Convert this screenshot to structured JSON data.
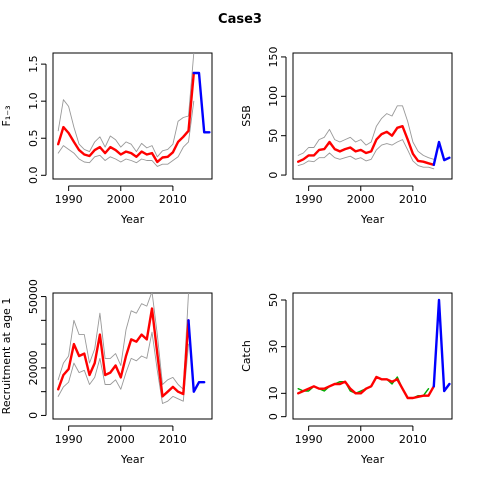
{
  "figure": {
    "title": "Case3"
  },
  "chart_data": [
    {
      "type": "line",
      "ylabel": "F₁₋₃",
      "xlabel": "Year",
      "xlim": [
        1987,
        2017.5
      ],
      "ylim": [
        -0.05,
        1.65
      ],
      "x_ticks": [
        1990,
        2000,
        2010
      ],
      "y_ticks": [
        0.0,
        0.5,
        1.0,
        1.5
      ],
      "y_tick_labels": [
        "0.0",
        "0.5",
        "1.0",
        "1.5"
      ],
      "series": [
        {
          "role": "estimate",
          "color": "#ff0000",
          "x": [
            1988,
            1989,
            1990,
            1991,
            1992,
            1993,
            1994,
            1995,
            1996,
            1997,
            1998,
            1999,
            2000,
            2001,
            2002,
            2003,
            2004,
            2005,
            2006,
            2007,
            2008,
            2009,
            2010,
            2011,
            2012,
            2013,
            2014
          ],
          "y": [
            0.42,
            0.65,
            0.57,
            0.45,
            0.34,
            0.28,
            0.26,
            0.34,
            0.38,
            0.3,
            0.38,
            0.34,
            0.28,
            0.32,
            0.3,
            0.25,
            0.32,
            0.28,
            0.3,
            0.18,
            0.24,
            0.25,
            0.31,
            0.45,
            0.52,
            0.6,
            1.38
          ]
        },
        {
          "role": "upper",
          "color": "#888888",
          "x": [
            1988,
            1989,
            1990,
            1991,
            1992,
            1993,
            1994,
            1995,
            1996,
            1997,
            1998,
            1999,
            2000,
            2001,
            2002,
            2003,
            2004,
            2005,
            2006,
            2007,
            2008,
            2009,
            2010,
            2011,
            2012,
            2013,
            2014
          ],
          "y": [
            0.6,
            1.02,
            0.93,
            0.65,
            0.42,
            0.35,
            0.32,
            0.45,
            0.52,
            0.38,
            0.53,
            0.48,
            0.38,
            0.45,
            0.42,
            0.32,
            0.43,
            0.37,
            0.4,
            0.25,
            0.33,
            0.35,
            0.42,
            0.73,
            0.78,
            0.8,
            1.65
          ]
        },
        {
          "role": "lower",
          "color": "#888888",
          "x": [
            1988,
            1989,
            1990,
            1991,
            1992,
            1993,
            1994,
            1995,
            1996,
            1997,
            1998,
            1999,
            2000,
            2001,
            2002,
            2003,
            2004,
            2005,
            2006,
            2007,
            2008,
            2009,
            2010,
            2011,
            2012,
            2013,
            2014
          ],
          "y": [
            0.3,
            0.4,
            0.35,
            0.3,
            0.22,
            0.18,
            0.17,
            0.25,
            0.27,
            0.2,
            0.25,
            0.22,
            0.18,
            0.22,
            0.2,
            0.17,
            0.22,
            0.2,
            0.2,
            0.12,
            0.15,
            0.15,
            0.2,
            0.25,
            0.38,
            0.45,
            1.0
          ]
        },
        {
          "role": "projection",
          "color": "#0000ff",
          "x": [
            2014,
            2015,
            2016,
            2017
          ],
          "y": [
            1.38,
            1.38,
            0.58,
            0.58
          ]
        }
      ]
    },
    {
      "type": "line",
      "ylabel": "SSB",
      "xlabel": "Year",
      "xlim": [
        1987,
        2017.5
      ],
      "ylim": [
        -5,
        155
      ],
      "x_ticks": [
        1990,
        2000,
        2010
      ],
      "y_ticks": [
        0,
        50,
        100,
        150
      ],
      "y_tick_labels": [
        "0",
        "50",
        "100",
        "150"
      ],
      "series": [
        {
          "role": "estimate",
          "color": "#ff0000",
          "x": [
            1988,
            1989,
            1990,
            1991,
            1992,
            1993,
            1994,
            1995,
            1996,
            1997,
            1998,
            1999,
            2000,
            2001,
            2002,
            2003,
            2004,
            2005,
            2006,
            2007,
            2008,
            2009,
            2010,
            2011,
            2012,
            2013,
            2014
          ],
          "y": [
            17,
            20,
            25,
            25,
            32,
            33,
            42,
            33,
            30,
            33,
            35,
            30,
            32,
            28,
            30,
            45,
            52,
            55,
            50,
            60,
            62,
            45,
            27,
            18,
            17,
            15,
            13
          ]
        },
        {
          "role": "upper",
          "color": "#888888",
          "x": [
            1988,
            1989,
            1990,
            1991,
            1992,
            1993,
            1994,
            1995,
            1996,
            1997,
            1998,
            1999,
            2000,
            2001,
            2002,
            2003,
            2004,
            2005,
            2006,
            2007,
            2008,
            2009,
            2010,
            2011,
            2012,
            2013,
            2014
          ],
          "y": [
            25,
            28,
            35,
            35,
            45,
            48,
            58,
            45,
            42,
            45,
            48,
            42,
            45,
            38,
            42,
            62,
            72,
            78,
            75,
            88,
            88,
            68,
            42,
            30,
            25,
            22,
            20
          ]
        },
        {
          "role": "lower",
          "color": "#888888",
          "x": [
            1988,
            1989,
            1990,
            1991,
            1992,
            1993,
            1994,
            1995,
            1996,
            1997,
            1998,
            1999,
            2000,
            2001,
            2002,
            2003,
            2004,
            2005,
            2006,
            2007,
            2008,
            2009,
            2010,
            2011,
            2012,
            2013,
            2014
          ],
          "y": [
            12,
            14,
            18,
            17,
            22,
            22,
            28,
            22,
            20,
            22,
            24,
            20,
            22,
            18,
            20,
            32,
            38,
            40,
            38,
            42,
            45,
            32,
            18,
            12,
            10,
            10,
            8
          ]
        },
        {
          "role": "projection",
          "color": "#0000ff",
          "x": [
            2014,
            2015,
            2016,
            2017
          ],
          "y": [
            13,
            42,
            19,
            22
          ]
        }
      ]
    },
    {
      "type": "line",
      "ylabel": "Recruitment at age 1",
      "xlabel": "Year",
      "xlim": [
        1987,
        2017.5
      ],
      "ylim": [
        -1500,
        51500
      ],
      "x_ticks": [
        1990,
        2000,
        2010
      ],
      "y_ticks": [
        0,
        20000,
        50000
      ],
      "y_tick_labels": [
        "0",
        "20000",
        "50000"
      ],
      "minor_y_ticks": [
        10000,
        30000,
        40000
      ],
      "series": [
        {
          "role": "estimate",
          "color": "#ff0000",
          "x": [
            1988,
            1989,
            1990,
            1991,
            1992,
            1993,
            1994,
            1995,
            1996,
            1997,
            1998,
            1999,
            2000,
            2001,
            2002,
            2003,
            2004,
            2005,
            2006,
            2007,
            2008,
            2009,
            2010,
            2011,
            2012,
            2013
          ],
          "y": [
            11000,
            17000,
            19500,
            30000,
            25000,
            26000,
            17000,
            22000,
            34000,
            17000,
            18000,
            21000,
            16000,
            25000,
            32000,
            31000,
            34000,
            32000,
            45000,
            26000,
            8000,
            10000,
            12000,
            10000,
            9000,
            40000
          ]
        },
        {
          "role": "upper",
          "color": "#888888",
          "x": [
            1988,
            1989,
            1990,
            1991,
            1992,
            1993,
            1994,
            1995,
            1996,
            1997,
            1998,
            1999,
            2000,
            2001,
            2002,
            2003,
            2004,
            2005,
            2006,
            2007,
            2008,
            2009,
            2010,
            2011,
            2012,
            2013
          ],
          "y": [
            15000,
            22000,
            25000,
            40000,
            34000,
            34000,
            22000,
            28000,
            43000,
            24000,
            24000,
            26000,
            21000,
            36000,
            44000,
            43000,
            47000,
            46000,
            52000,
            34000,
            13000,
            15000,
            16000,
            13000,
            11000,
            51500
          ]
        },
        {
          "role": "lower",
          "color": "#888888",
          "x": [
            1988,
            1989,
            1990,
            1991,
            1992,
            1993,
            1994,
            1995,
            1996,
            1997,
            1998,
            1999,
            2000,
            2001,
            2002,
            2003,
            2004,
            2005,
            2006,
            2007,
            2008,
            2009,
            2010,
            2011,
            2012,
            2013
          ],
          "y": [
            8000,
            12000,
            14000,
            22000,
            18000,
            19000,
            13000,
            16000,
            24000,
            13000,
            13000,
            15000,
            11000,
            18000,
            24000,
            23000,
            25000,
            24000,
            35000,
            19000,
            5000,
            6000,
            8000,
            7000,
            6000,
            30000
          ]
        },
        {
          "role": "projection",
          "color": "#0000ff",
          "x": [
            2013,
            2014,
            2015,
            2016
          ],
          "y": [
            40000,
            10000,
            14000,
            14000
          ]
        }
      ]
    },
    {
      "type": "line",
      "ylabel": "Catch",
      "xlabel": "Year",
      "xlim": [
        1987,
        2017.5
      ],
      "ylim": [
        -1,
        53
      ],
      "x_ticks": [
        1990,
        2000,
        2010
      ],
      "y_ticks": [
        0,
        10,
        30,
        50
      ],
      "y_tick_labels": [
        "0",
        "10",
        "30",
        "50"
      ],
      "series": [
        {
          "role": "observed",
          "color": "#00aa00",
          "x": [
            1988,
            1989,
            1990,
            1991,
            1992,
            1993,
            1994,
            1995,
            1996,
            1997,
            1998,
            1999,
            2000,
            2001,
            2002,
            2003,
            2004,
            2005,
            2006,
            2007,
            2008,
            2009,
            2010,
            2011,
            2012,
            2013
          ],
          "y": [
            12,
            11,
            11,
            13,
            12,
            11,
            13,
            14,
            15,
            15,
            11,
            10,
            11,
            12,
            13,
            17,
            16,
            16,
            14,
            17,
            12,
            8,
            8,
            9,
            9,
            12
          ]
        },
        {
          "role": "estimate",
          "color": "#ff0000",
          "x": [
            1988,
            1989,
            1990,
            1991,
            1992,
            1993,
            1994,
            1995,
            1996,
            1997,
            1998,
            1999,
            2000,
            2001,
            2002,
            2003,
            2004,
            2005,
            2006,
            2007,
            2008,
            2009,
            2010,
            2011,
            2012,
            2013,
            2014
          ],
          "y": [
            10,
            11,
            12,
            13,
            12,
            12,
            13,
            14,
            14,
            15,
            12,
            10,
            10,
            12,
            13,
            17,
            16,
            16,
            15,
            16,
            12,
            8,
            8,
            8.5,
            9,
            9,
            13
          ]
        },
        {
          "role": "projection",
          "color": "#0000ff",
          "x": [
            2014,
            2015,
            2016,
            2017
          ],
          "y": [
            13,
            50,
            11,
            14
          ]
        }
      ]
    }
  ]
}
